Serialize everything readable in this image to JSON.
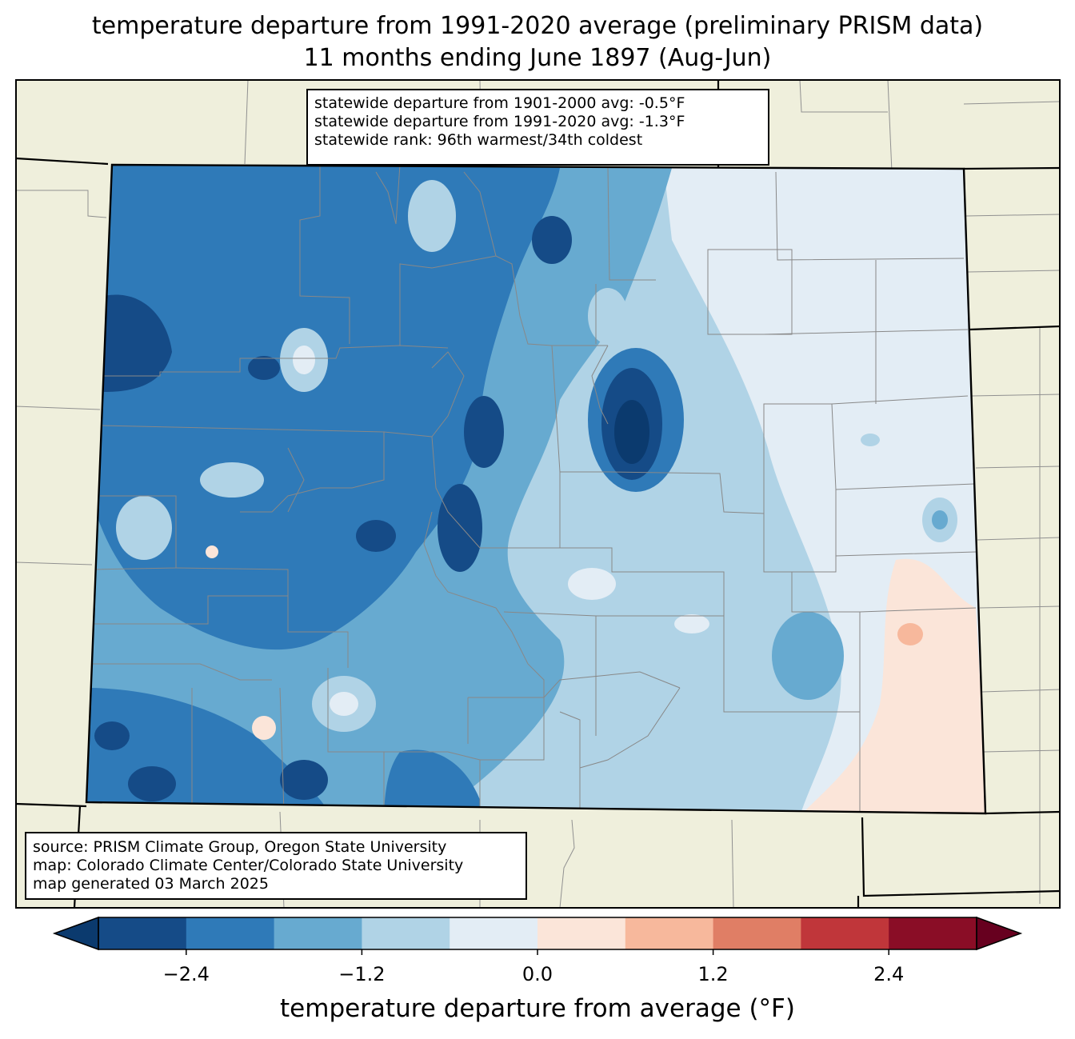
{
  "title": {
    "line1": "temperature departure from 1991-2020 average (preliminary PRISM data)",
    "line2": "11 months ending June 1897 (Aug-Jun)"
  },
  "stats": {
    "line1": "statewide departure from 1901-2000 avg: -0.5°F",
    "line2": "statewide departure from 1991-2020 avg: -1.3°F",
    "line3": "statewide rank: 96th warmest/34th coldest"
  },
  "source": {
    "line1": "source: PRISM Climate Group, Oregon State University",
    "line2": "map: Colorado Climate Center/Colorado State University",
    "line3": "map generated 03 March 2025"
  },
  "colorbar": {
    "label": "temperature departure from average (°F)",
    "ticks": [
      "−2.4",
      "−1.2",
      "0.0",
      "1.2",
      "2.4"
    ],
    "tick_values": [
      -2.4,
      -1.2,
      0.0,
      1.2,
      2.4
    ],
    "levels": [
      -3.0,
      -2.4,
      -1.8,
      -1.2,
      -0.6,
      0.0,
      0.6,
      1.2,
      1.8,
      2.4,
      3.0
    ],
    "extend_low_color": "#0b3a6e",
    "extend_high_color": "#67001f",
    "colors": [
      "#154b87",
      "#2f7ab8",
      "#67aad0",
      "#b0d3e6",
      "#e3edf5",
      "#fbe5d9",
      "#f7b89c",
      "#e07e65",
      "#c0363a",
      "#8a0d26"
    ]
  },
  "map": {
    "land_color": "#efefdc",
    "ocean_color": "#ffffff",
    "region": "Colorado"
  }
}
